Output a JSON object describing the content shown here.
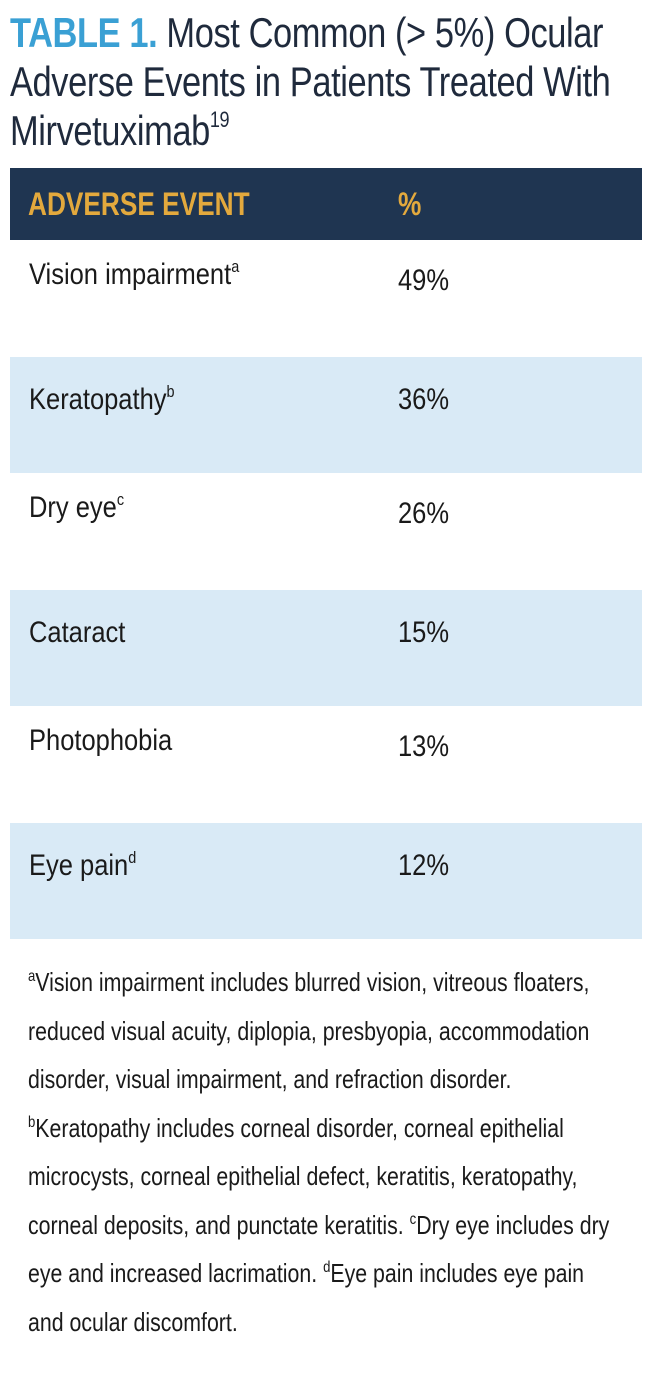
{
  "title": {
    "label": "TABLE 1.",
    "text": "Most Common (> 5%) Ocular Adverse Events in Patients Treated With Mirvetuximab",
    "ref": "19"
  },
  "table": {
    "headers": [
      "ADVERSE EVENT",
      "%"
    ],
    "rows": [
      {
        "event": "Vision impairment",
        "mark": "a",
        "percent": "49%"
      },
      {
        "event": "Keratopathy",
        "mark": "b",
        "percent": "36%"
      },
      {
        "event": "Dry eye",
        "mark": "c",
        "percent": "26%"
      },
      {
        "event": "Cataract",
        "mark": "",
        "percent": "15%"
      },
      {
        "event": "Photophobia",
        "mark": "",
        "percent": "13%"
      },
      {
        "event": "Eye pain",
        "mark": "d",
        "percent": "12%"
      }
    ]
  },
  "footnotes": [
    {
      "mark": "a",
      "text": "Vision impairment includes blurred vision, vitreous floaters, reduced visual acuity, diplopia, presbyopia, accommodation disorder, visual impairment, and refraction disorder."
    },
    {
      "mark": "b",
      "text": "Keratopathy includes corneal disorder, corneal epithelial microcysts, corneal epithelial defect, keratitis, keratopathy, corneal deposits, and punctate keratitis."
    },
    {
      "mark": "c",
      "text": "Dry eye includes dry eye and increased lacrimation."
    },
    {
      "mark": "d",
      "text": "Eye pain includes eye pain and ocular discomfort."
    }
  ],
  "colors": {
    "title_label": "#3aa0d4",
    "header_bg": "#1f3551",
    "header_text": "#e3a93d",
    "row_shade": "#d9eaf6"
  }
}
